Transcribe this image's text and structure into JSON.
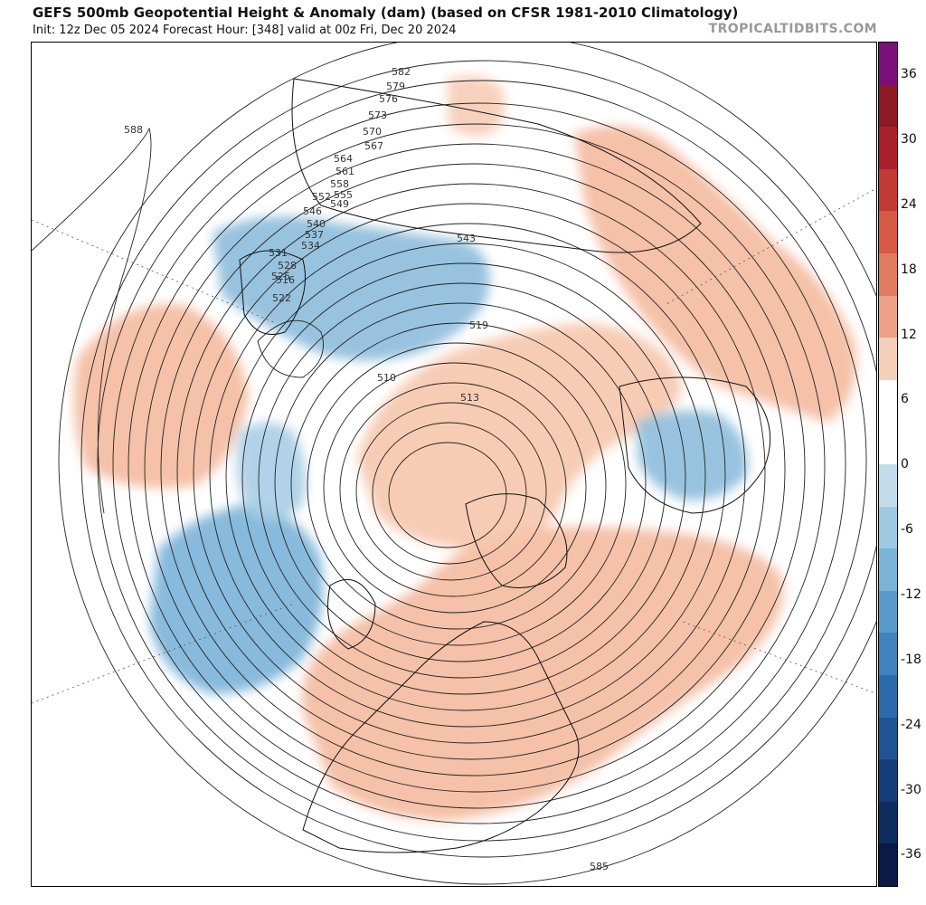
{
  "header": {
    "title": "GEFS 500mb Geopotential Height & Anomaly (dam) (based on CFSR 1981-2010 Climatology)",
    "subtitle": "Init: 12z Dec 05 2024   Forecast Hour: [348]   valid at 00z Fri, Dec 20 2024",
    "brand": "TROPICALTIDBITS.COM"
  },
  "colorbar": {
    "ticks": [
      "36",
      "30",
      "24",
      "18",
      "12",
      "6",
      "0",
      "-6",
      "-12",
      "-18",
      "-24",
      "-30",
      "-36"
    ],
    "colors": [
      "#7a0f7a",
      "#8b1a24",
      "#a8202b",
      "#c23a33",
      "#d65a45",
      "#e07b60",
      "#eca187",
      "#f6cfb8",
      "#ffffff",
      "#ffffff",
      "#c3dcec",
      "#9fc8e2",
      "#7ab3d8",
      "#5a9bcb",
      "#3f82bd",
      "#2d6aab",
      "#1f5395",
      "#163e7a",
      "#0f2c5e",
      "#0a1a46"
    ]
  },
  "map": {
    "contour_labels": [
      "582",
      "579",
      "576",
      "573",
      "570",
      "567",
      "564",
      "561",
      "558",
      "555",
      "552",
      "549",
      "546",
      "543",
      "540",
      "537",
      "534",
      "531",
      "528",
      "525",
      "522",
      "519",
      "516",
      "513",
      "510",
      "588",
      "585"
    ],
    "anomalies": [
      {
        "sign": "positive",
        "region": "Eastern North America & Central US"
      },
      {
        "sign": "positive",
        "region": "North Atlantic"
      },
      {
        "sign": "positive",
        "region": "Arctic Ocean / Siberia"
      },
      {
        "sign": "positive",
        "region": "Western Europe & Russia"
      },
      {
        "sign": "positive",
        "region": "Central North Pacific"
      },
      {
        "sign": "negative",
        "region": "Gulf of Alaska / NE Pacific"
      },
      {
        "sign": "negative",
        "region": "East Asia / Sea of Okhotsk"
      },
      {
        "sign": "negative",
        "region": "Europe (Balkans)"
      },
      {
        "sign": "negative",
        "region": "Bering Sea / Aleutians"
      }
    ]
  }
}
